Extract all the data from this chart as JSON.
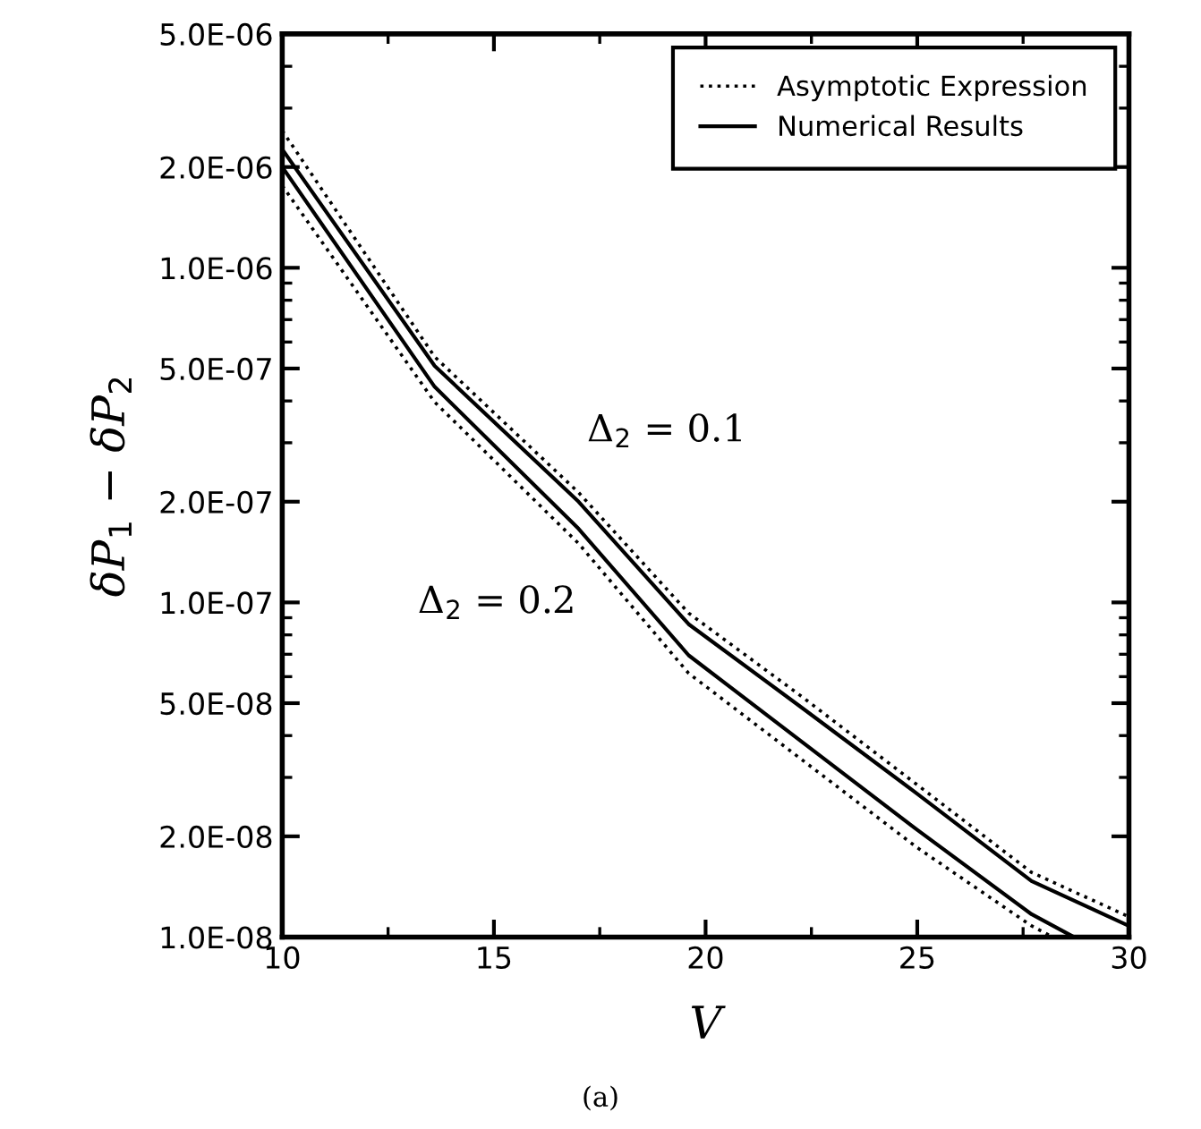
{
  "chart_data": {
    "type": "line",
    "xlabel": "V",
    "ylabel": "δP$_{1}$ − δP$_{2}$",
    "log": "y",
    "xlim": [
      10,
      30
    ],
    "xticks": [
      10,
      15,
      20,
      25,
      30
    ],
    "ylim": [
      1e-08,
      5e-06
    ],
    "yticks": [
      {
        "value": 1e-08,
        "label": "1.0E-08"
      },
      {
        "value": 2e-08,
        "label": "2.0E-08"
      },
      {
        "value": 5e-08,
        "label": "5.0E-08"
      },
      {
        "value": 1e-07,
        "label": "1.0E-07"
      },
      {
        "value": 2e-07,
        "label": "2.0E-07"
      },
      {
        "value": 5e-07,
        "label": "5.0E-07"
      },
      {
        "value": 1e-06,
        "label": "1.0E-06"
      },
      {
        "value": 2e-06,
        "label": "2.0E-06"
      },
      {
        "value": 5e-06,
        "label": "5.0E-06"
      }
    ],
    "grid": false,
    "legend": "top right",
    "marker": "none",
    "series": [
      {
        "name": "Asymptotic Expression",
        "color": "#000000",
        "line_style": "dotted",
        "x": [
          10,
          13.6,
          17,
          19.6,
          22.3,
          25,
          27.7,
          30
        ],
        "values": [
          2.57e-06,
          5.42e-07,
          2.13e-07,
          9.29e-08,
          5.2e-08,
          2.85e-08,
          1.56e-08,
          1.15e-08
        ]
      },
      {
        "name": "Numerical Results",
        "color": "#000000",
        "line_style": "solid",
        "x": [
          10,
          13.6,
          17,
          19.6,
          22.3,
          25,
          27.7,
          30
        ],
        "values": [
          2.26e-06,
          5.09e-07,
          2e-07,
          8.61e-08,
          4.82e-08,
          2.68e-08,
          1.47e-08,
          1.08e-08
        ]
      },
      {
        "color": "#000000",
        "line_style": "solid",
        "x": [
          10,
          13.6,
          17,
          19.6,
          22.3,
          25,
          27.7,
          28.7
        ],
        "values": [
          2e-06,
          4.41e-07,
          1.66e-07,
          6.95e-08,
          3.81e-08,
          2.09e-08,
          1.17e-08,
          1e-08
        ]
      },
      {
        "color": "#000000",
        "line_style": "dotted",
        "x": [
          10,
          13.6,
          17,
          19.6,
          22.3,
          25,
          27.7,
          28.2
        ],
        "values": [
          1.76e-06,
          3.97e-07,
          1.5e-07,
          6.14e-08,
          3.37e-08,
          1.85e-08,
          1.08e-08,
          1e-08
        ]
      }
    ],
    "annotations": [
      "Δ$_{2}$ = 0.1",
      "Δ$_{2}$ = 0.2",
      "(a)"
    ]
  }
}
